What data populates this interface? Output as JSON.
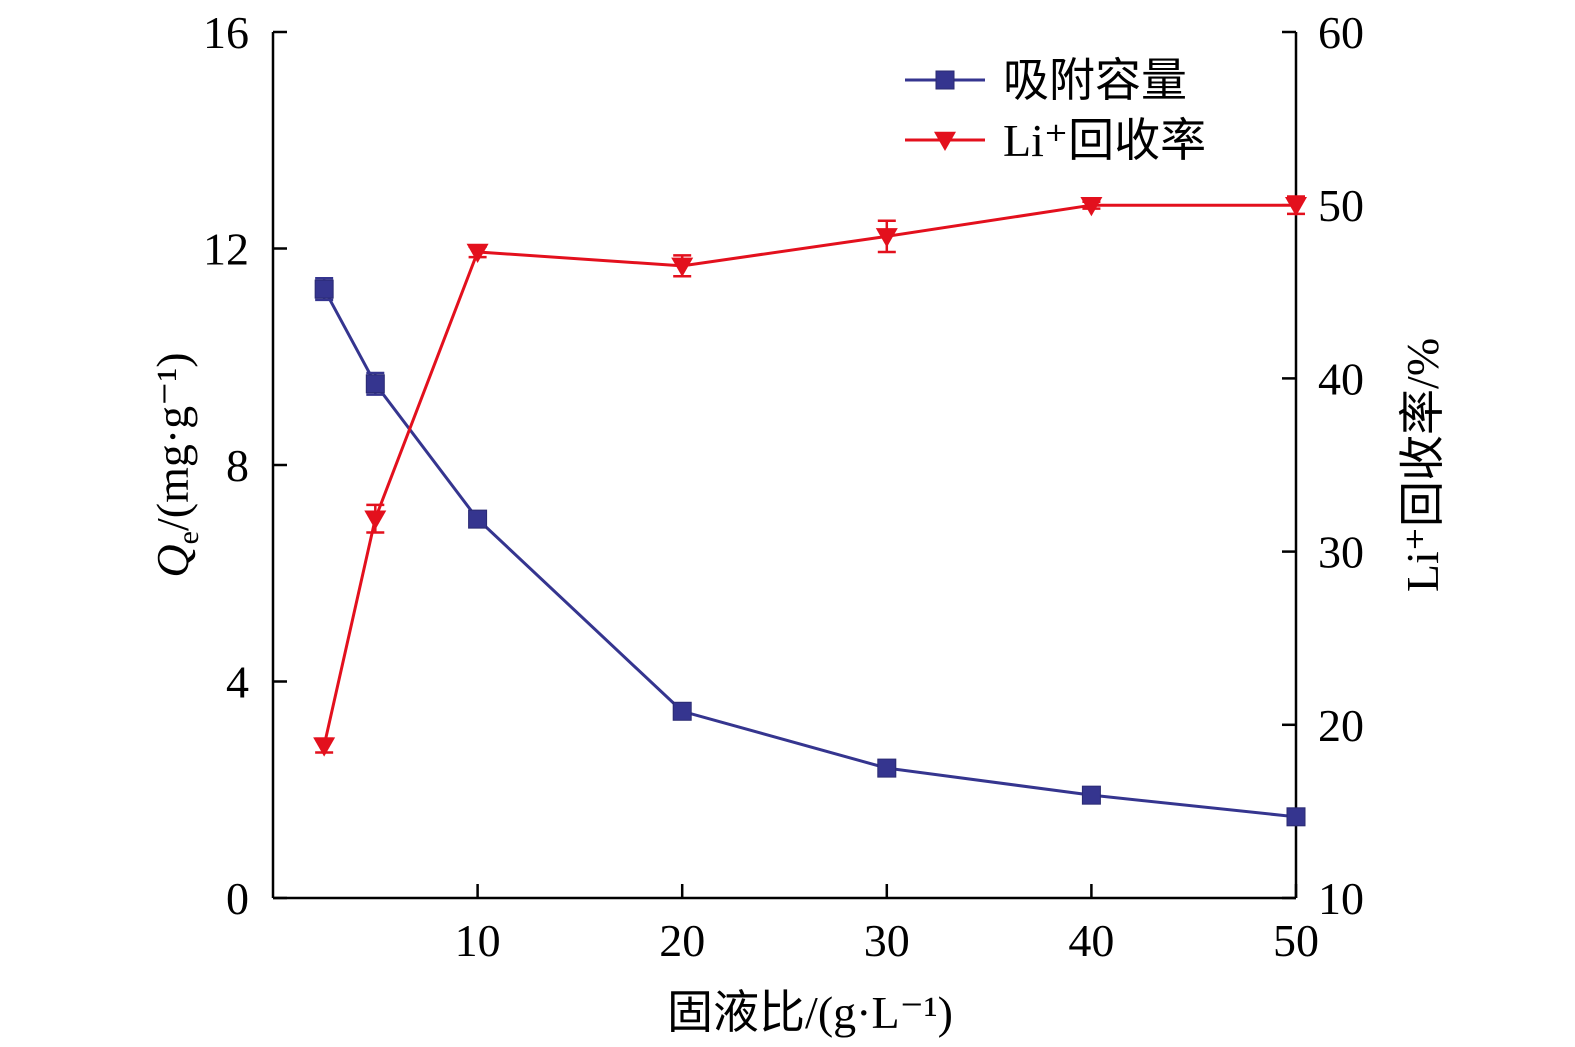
{
  "chart_data": {
    "type": "line",
    "x": [
      2.5,
      5,
      10,
      20,
      30,
      40,
      50
    ],
    "x_axis": {
      "label": "固液比/(g·L⁻¹)",
      "range": [
        0,
        50
      ],
      "ticks": [
        "10",
        "20",
        "30",
        "40",
        "50"
      ]
    },
    "y_left": {
      "label": "Q",
      "label_sub": "e",
      "label_rest": "/(mg·g⁻¹)",
      "range": [
        0,
        16
      ],
      "ticks": [
        "0",
        "4",
        "8",
        "12",
        "16"
      ]
    },
    "y_right": {
      "label": "Li⁺回收率/%",
      "range": [
        10,
        60
      ],
      "ticks": [
        "10",
        "20",
        "30",
        "40",
        "50",
        "60"
      ]
    },
    "series": [
      {
        "name": "吸附容量",
        "axis": "left",
        "marker": "square",
        "color": "#35358f",
        "values": [
          11.25,
          9.5,
          7.0,
          3.45,
          2.4,
          1.9,
          1.5
        ],
        "errors": [
          0.2,
          0.2,
          0.1,
          0.1,
          0.1,
          0.1,
          0.05
        ]
      },
      {
        "name": "Li⁺回收率",
        "axis": "right",
        "marker": "triangle-down",
        "color": "#e3101d",
        "values": [
          18.8,
          31.9,
          47.3,
          46.5,
          48.2,
          50.0,
          50.0
        ],
        "errors": [
          0.4,
          0.8,
          0.3,
          0.6,
          0.9,
          0.2,
          0.5
        ]
      }
    ],
    "legend_position": "top-right",
    "grid": false
  }
}
